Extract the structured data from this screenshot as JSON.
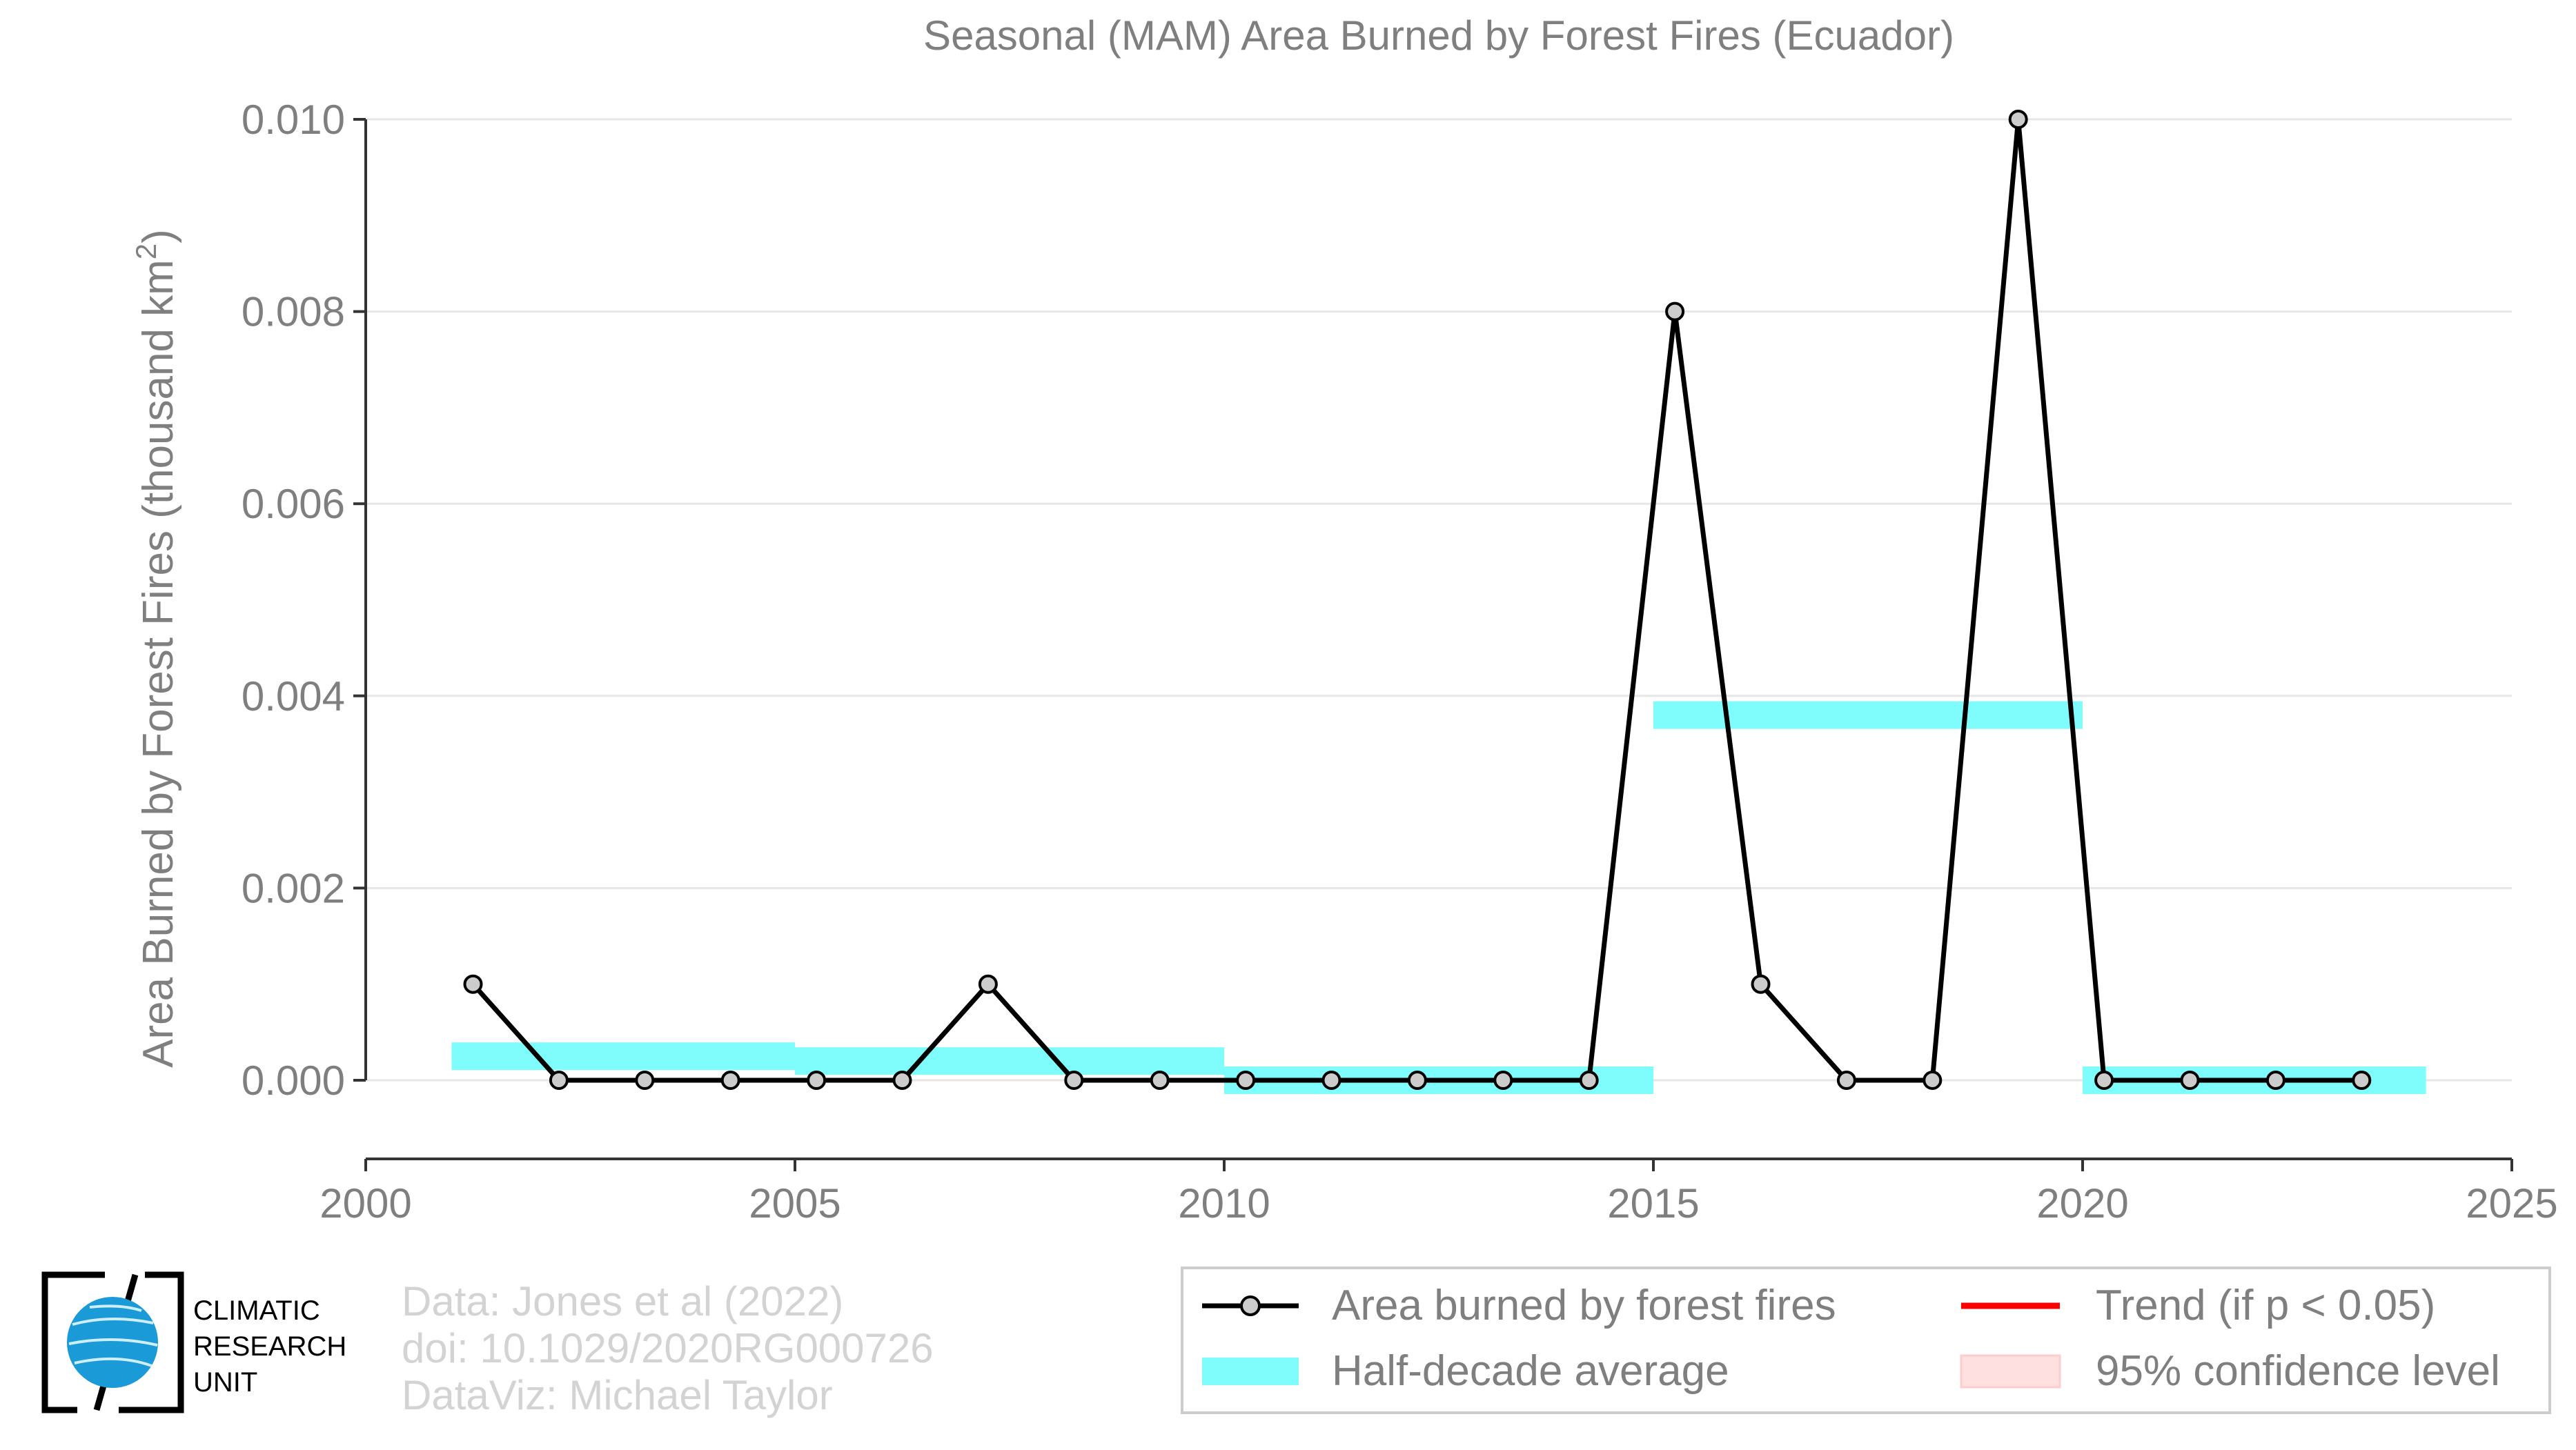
{
  "chart_data": {
    "type": "line",
    "title": "Seasonal (MAM) Area Burned by Forest Fires (Ecuador)",
    "xlabel": "",
    "ylabel": "Area Burned by Forest Fires (thousand km",
    "ylabel_sup": "2",
    "ylabel_close": ")",
    "xlim": [
      2000,
      2025
    ],
    "ylim": [
      -0.0008,
      0.01
    ],
    "x_ticks": [
      2000,
      2005,
      2010,
      2015,
      2020,
      2025
    ],
    "x_tick_labels": [
      "2000",
      "2005",
      "2010",
      "2015",
      "2020",
      "2025"
    ],
    "y_ticks": [
      0,
      0.002,
      0.004,
      0.006,
      0.008,
      0.01
    ],
    "y_tick_labels": [
      "0.000",
      "0.002",
      "0.004",
      "0.006",
      "0.008",
      "0.010"
    ],
    "grid": true,
    "series": [
      {
        "name": "Area burned by forest fires",
        "color": "#000000",
        "x": [
          2001.25,
          2002.25,
          2003.25,
          2004.25,
          2005.25,
          2006.25,
          2007.25,
          2008.25,
          2009.25,
          2010.25,
          2011.25,
          2012.25,
          2013.25,
          2014.25,
          2015.25,
          2016.25,
          2017.25,
          2018.25,
          2019.25,
          2020.25,
          2021.25,
          2022.25,
          2023.25
        ],
        "values": [
          0.001,
          0,
          0,
          0,
          0,
          0,
          0.001,
          0,
          0,
          0,
          0,
          0,
          0,
          0,
          0.008,
          0.001,
          0,
          0,
          0.01,
          0,
          0,
          0,
          0
        ]
      }
    ],
    "half_decade_average": {
      "name": "Half-decade average",
      "color": "#7ffcfc",
      "segments": [
        {
          "start": 2001,
          "end": 2005,
          "value": 0.00025
        },
        {
          "start": 2005,
          "end": 2010,
          "value": 0.0002
        },
        {
          "start": 2010,
          "end": 2015,
          "value": 0.0
        },
        {
          "start": 2015,
          "end": 2020,
          "value": 0.0038
        },
        {
          "start": 2020,
          "end": 2024,
          "value": 0.0
        }
      ]
    },
    "legend": {
      "position": "bottom-right",
      "entries": [
        {
          "label": "Area burned by forest fires",
          "kind": "line-marker",
          "color": "#000000"
        },
        {
          "label": "Trend (if p < 0.05)",
          "kind": "line",
          "color": "#ff0000"
        },
        {
          "label": "Half-decade average",
          "kind": "band",
          "color": "#7ffcfc"
        },
        {
          "label": "95% confidence level",
          "kind": "band",
          "color": "#ffe0e0"
        }
      ]
    }
  },
  "credits": {
    "data": "Data: Jones et al (2022)",
    "doi": "doi: 10.1029/2020RG000726",
    "dataviz": "DataViz: Michael Taylor"
  },
  "logo": {
    "line1": "CLIMATIC",
    "line2": "RESEARCH",
    "line3": "UNIT"
  },
  "colors": {
    "axis_text": "#7f7f7f",
    "grid": "#e6e6e6",
    "credit_text": "#d3d3d3",
    "logo_globe": "#1a9ad6"
  }
}
